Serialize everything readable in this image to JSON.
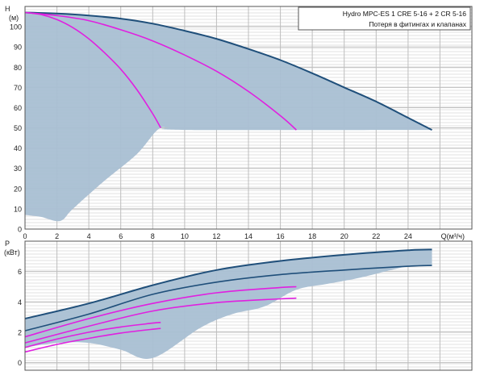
{
  "chart_data": [
    {
      "type": "line",
      "ylabel": "H",
      "yunit": "(м)",
      "xlabel": "Q(м³/ч)",
      "xlim": [
        0,
        28
      ],
      "ylim": [
        0,
        110
      ],
      "xticks": [
        0,
        2,
        4,
        6,
        8,
        10,
        12,
        14,
        16,
        18,
        20,
        22,
        24
      ],
      "yticks": [
        0,
        10,
        20,
        30,
        40,
        50,
        60,
        70,
        80,
        90,
        100
      ],
      "grid": true,
      "legend_position": "top-right",
      "legend": [
        "Hydro MPC-ES 1 CRE 5-16  +  2 CR 5-16",
        "Потеря в фитингах и клапанах"
      ],
      "series": [
        {
          "name": "Hydro MPC-ES 1 CRE 5-16  +  2 CR 5-16",
          "color": "#1f4f7a",
          "x": [
            0,
            2,
            4,
            6,
            8,
            10,
            12,
            14,
            16,
            18,
            20,
            22,
            24,
            25.5
          ],
          "y": [
            107,
            106.5,
            105.5,
            104,
            101.5,
            98,
            94,
            89,
            83.5,
            77,
            70,
            63,
            55,
            49
          ]
        },
        {
          "color": "#e020e0",
          "x": [
            0,
            1,
            2,
            3,
            4,
            5,
            6,
            7,
            8,
            8.5
          ],
          "y": [
            107,
            106,
            103.5,
            99.5,
            94,
            87,
            79,
            69,
            57,
            50
          ]
        },
        {
          "color": "#e020e0",
          "x": [
            0,
            2,
            4,
            6,
            8,
            10,
            12,
            14,
            16,
            17
          ],
          "y": [
            107,
            105.5,
            103,
            98.5,
            93,
            86,
            78,
            68,
            56,
            49
          ]
        }
      ],
      "area": {
        "color": "#a9bfd3",
        "upper_x": [
          0,
          2,
          4,
          6,
          8,
          10,
          12,
          14,
          16,
          18,
          20,
          22,
          24,
          25.5
        ],
        "upper_y": [
          107,
          106.5,
          105.5,
          104,
          101.5,
          98,
          94,
          89,
          83.5,
          77,
          70,
          63,
          55,
          49
        ],
        "lower_x": [
          25.5,
          10,
          9,
          8.3,
          7,
          5,
          3,
          2.2,
          1,
          0
        ],
        "lower_y": [
          49,
          49,
          50,
          49,
          37,
          24,
          10,
          4,
          6,
          7
        ]
      }
    },
    {
      "type": "line",
      "ylabel": "P",
      "yunit": "(кВт)",
      "xlim": [
        0,
        28
      ],
      "ylim": [
        -0.5,
        8
      ],
      "xticks": [
        0,
        2,
        4,
        6,
        8,
        10,
        12,
        14,
        16,
        18,
        20,
        22,
        24
      ],
      "yticks": [
        0,
        2,
        4,
        6
      ],
      "grid": true,
      "series": [
        {
          "color": "#1f4f7a",
          "x": [
            0,
            4,
            8,
            12,
            16,
            20,
            24,
            25.5
          ],
          "y": [
            2.9,
            3.9,
            5.1,
            6.1,
            6.7,
            7.1,
            7.4,
            7.45
          ]
        },
        {
          "color": "#1f4f7a",
          "x": [
            0,
            4,
            8,
            12,
            16,
            20,
            24,
            25.5
          ],
          "y": [
            2.1,
            3.2,
            4.5,
            5.3,
            5.8,
            6.1,
            6.35,
            6.4
          ]
        },
        {
          "color": "#e020e0",
          "x": [
            0,
            4,
            8,
            12,
            16,
            17
          ],
          "y": [
            1.7,
            2.9,
            3.9,
            4.6,
            4.95,
            5.0
          ]
        },
        {
          "color": "#e020e0",
          "x": [
            0,
            4,
            8,
            12,
            16,
            17
          ],
          "y": [
            1.3,
            2.4,
            3.4,
            3.95,
            4.2,
            4.25
          ]
        },
        {
          "color": "#e020e0",
          "x": [
            0,
            2,
            4,
            6,
            8,
            8.5
          ],
          "y": [
            1.0,
            1.55,
            2.0,
            2.35,
            2.6,
            2.65
          ]
        },
        {
          "color": "#e020e0",
          "x": [
            0,
            2,
            4,
            6,
            8,
            8.5
          ],
          "y": [
            0.7,
            1.2,
            1.6,
            1.95,
            2.2,
            2.25
          ]
        }
      ],
      "area": {
        "color": "#a9bfd3",
        "upper_x": [
          0,
          4,
          8,
          12,
          16,
          20,
          24,
          25.5
        ],
        "upper_y": [
          2.9,
          3.9,
          5.1,
          6.1,
          6.7,
          7.1,
          7.4,
          7.45
        ],
        "lower_x": [
          25.5,
          24,
          21,
          19,
          17,
          15,
          13,
          11,
          8,
          6,
          4,
          2,
          0
        ],
        "lower_y": [
          6.4,
          6.35,
          5.6,
          5.2,
          4.8,
          3.7,
          3.2,
          2.3,
          0.3,
          0.85,
          1.3,
          1.3,
          1.0
        ]
      }
    }
  ]
}
